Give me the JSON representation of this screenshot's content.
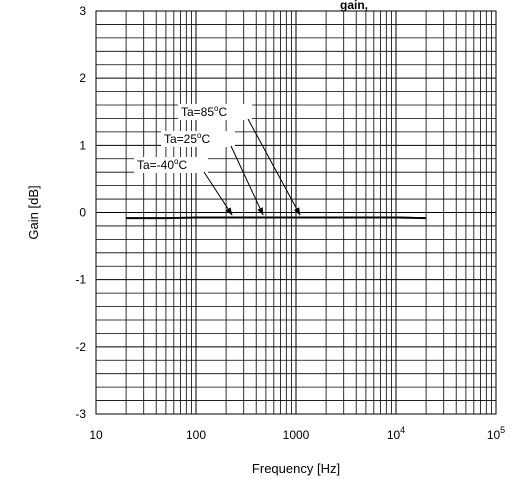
{
  "chart_data": {
    "type": "line",
    "title": "gain, ",
    "xlabel": "Frequency [Hz]",
    "ylabel": "Gain [dB]",
    "x_scale": "log",
    "xlim": [
      10,
      100000
    ],
    "ylim": [
      -3,
      3
    ],
    "grid": true,
    "x_ticks": [
      {
        "value": 10,
        "mantissa": "10",
        "exp": ""
      },
      {
        "value": 100,
        "mantissa": "100",
        "exp": ""
      },
      {
        "value": 1000,
        "mantissa": "1000",
        "exp": ""
      },
      {
        "value": 10000,
        "mantissa": "10",
        "exp": "4"
      },
      {
        "value": 100000,
        "mantissa": "10",
        "exp": "5"
      }
    ],
    "y_ticks": [
      "3",
      "2",
      "1",
      "0",
      "-1",
      "-2",
      "-3"
    ],
    "series": [
      {
        "name": "Ta=-40°C",
        "x": [
          20,
          50,
          100,
          200,
          500,
          1000,
          2000,
          5000,
          10000,
          20000
        ],
        "y": [
          -0.08,
          -0.08,
          -0.08,
          -0.07,
          -0.07,
          -0.07,
          -0.07,
          -0.07,
          -0.07,
          -0.08
        ]
      },
      {
        "name": "Ta=25°C",
        "x": [
          20,
          50,
          100,
          200,
          500,
          1000,
          2000,
          5000,
          10000,
          20000
        ],
        "y": [
          -0.08,
          -0.08,
          -0.07,
          -0.07,
          -0.07,
          -0.07,
          -0.07,
          -0.07,
          -0.07,
          -0.08
        ]
      },
      {
        "name": "Ta=85°C",
        "x": [
          20,
          50,
          100,
          200,
          500,
          1000,
          2000,
          5000,
          10000,
          20000
        ],
        "y": [
          -0.09,
          -0.09,
          -0.08,
          -0.08,
          -0.08,
          -0.08,
          -0.08,
          -0.08,
          -0.08,
          -0.09
        ]
      }
    ],
    "annotations": [
      {
        "label": "Ta=85",
        "unit": "C",
        "point": [
          1100,
          -0.07
        ]
      },
      {
        "label": "Ta=25",
        "unit": "C",
        "point": [
          470,
          -0.07
        ]
      },
      {
        "label": "Ta=-40",
        "unit": "C",
        "point": [
          230,
          -0.07
        ]
      }
    ],
    "degree_mark": "o"
  }
}
